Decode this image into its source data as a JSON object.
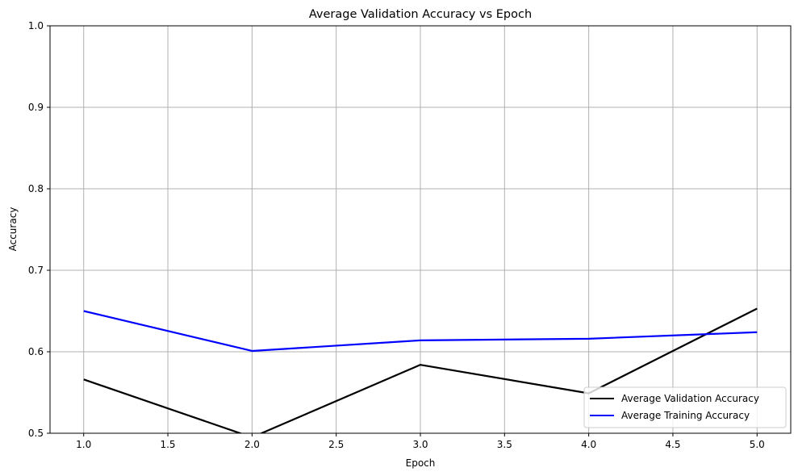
{
  "chart_data": {
    "type": "line",
    "title": "Average Validation Accuracy vs Epoch",
    "xlabel": "Epoch",
    "ylabel": "Accuracy",
    "x": [
      1,
      2,
      3,
      4,
      5
    ],
    "xlim": [
      0.8,
      5.2
    ],
    "ylim": [
      0.5,
      1.0
    ],
    "xticks": [
      "1.0",
      "1.5",
      "2.0",
      "2.5",
      "3.0",
      "3.5",
      "4.0",
      "4.5",
      "5.0"
    ],
    "yticks": [
      "0.5",
      "0.6",
      "0.7",
      "0.8",
      "0.9",
      "1.0"
    ],
    "grid": true,
    "legend_position": "lower-right",
    "series": [
      {
        "name": "Average Validation Accuracy",
        "color": "#000000",
        "values": [
          0.566,
          0.495,
          0.584,
          0.549,
          0.653
        ]
      },
      {
        "name": "Average Training Accuracy",
        "color": "#0000ff",
        "values": [
          0.65,
          0.601,
          0.614,
          0.616,
          0.624
        ]
      }
    ]
  }
}
